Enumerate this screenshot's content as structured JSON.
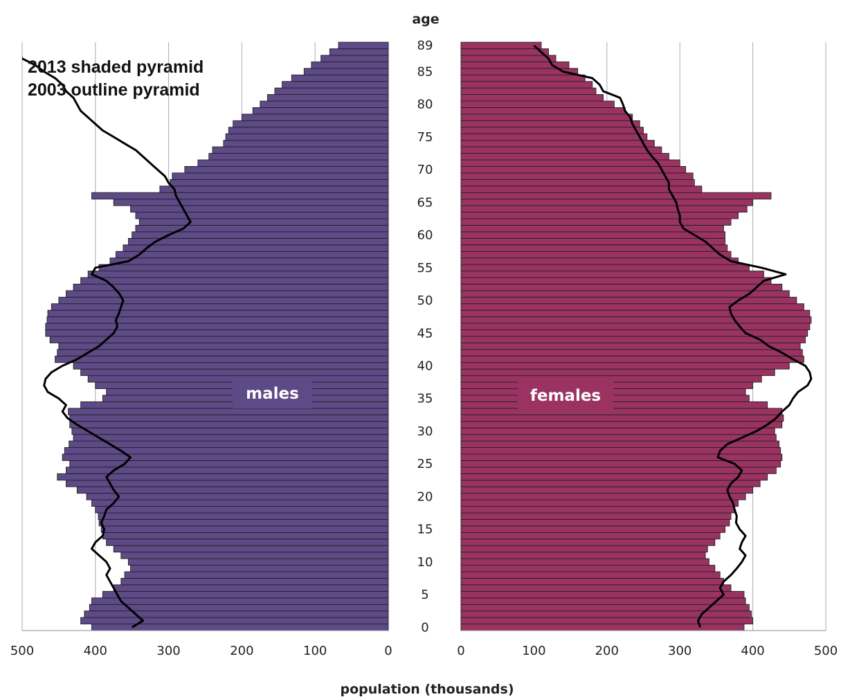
{
  "chart_data": {
    "type": "bar",
    "subtype": "population-pyramid",
    "legend_lines": [
      "2013 shaded pyramid",
      "2003 outline pyramid"
    ],
    "legend_placement": "top-left",
    "age_axis_title": "age",
    "x_axis_title": "population (thousands)",
    "age_ticks": [
      "0",
      "5",
      "10",
      "15",
      "20",
      "25",
      "30",
      "35",
      "40",
      "45",
      "50",
      "55",
      "60",
      "65",
      "70",
      "75",
      "80",
      "85",
      "89"
    ],
    "x_ticks_males": [
      "500",
      "400",
      "300",
      "200",
      "100",
      "0"
    ],
    "x_ticks_females": [
      "0",
      "100",
      "200",
      "300",
      "400",
      "500"
    ],
    "xlim": [
      0,
      500
    ],
    "grid": "vertical",
    "colors": {
      "males": "#5e4a87",
      "females": "#9b3362",
      "outline": "#000000",
      "bar_edge": "#222222",
      "grid": "#aaaaaa"
    },
    "series": [
      {
        "name": "males",
        "year": 2013,
        "values": [
          405,
          420,
          415,
          408,
          405,
          390,
          375,
          365,
          360,
          352,
          355,
          365,
          375,
          385,
          390,
          392,
          395,
          396,
          400,
          405,
          412,
          425,
          440,
          452,
          440,
          435,
          445,
          442,
          436,
          430,
          432,
          435,
          435,
          437,
          420,
          390,
          385,
          400,
          410,
          420,
          430,
          455,
          452,
          450,
          462,
          468,
          468,
          466,
          465,
          460,
          450,
          440,
          430,
          420,
          410,
          395,
          380,
          372,
          362,
          355,
          350,
          345,
          340,
          345,
          352,
          375,
          405,
          312,
          298,
          295,
          278,
          260,
          245,
          240,
          225,
          222,
          218,
          212,
          200,
          185,
          175,
          165,
          155,
          145,
          132,
          115,
          105,
          92,
          80,
          68
        ]
      },
      {
        "name": "females",
        "year": 2013,
        "values": [
          388,
          400,
          398,
          395,
          390,
          388,
          370,
          360,
          355,
          348,
          340,
          335,
          338,
          348,
          355,
          362,
          368,
          370,
          375,
          380,
          390,
          400,
          410,
          420,
          432,
          438,
          440,
          438,
          436,
          432,
          430,
          440,
          442,
          440,
          420,
          395,
          390,
          400,
          412,
          430,
          450,
          470,
          468,
          465,
          472,
          475,
          478,
          480,
          478,
          470,
          460,
          450,
          440,
          425,
          415,
          395,
          380,
          370,
          365,
          362,
          362,
          360,
          370,
          380,
          392,
          400,
          425,
          330,
          320,
          318,
          308,
          300,
          285,
          275,
          265,
          255,
          250,
          245,
          235,
          225,
          210,
          195,
          185,
          180,
          170,
          160,
          148,
          130,
          120,
          110
        ]
      },
      {
        "name": "males 2003",
        "year": 2003,
        "values": [
          350,
          335,
          345,
          355,
          365,
          370,
          375,
          380,
          385,
          380,
          385,
          395,
          405,
          400,
          390,
          388,
          392,
          388,
          385,
          375,
          368,
          375,
          380,
          385,
          375,
          360,
          352,
          365,
          380,
          395,
          410,
          425,
          438,
          445,
          440,
          450,
          465,
          470,
          468,
          460,
          445,
          425,
          410,
          395,
          385,
          375,
          370,
          372,
          368,
          365,
          362,
          367,
          375,
          385,
          405,
          400,
          355,
          340,
          330,
          318,
          300,
          280,
          270,
          275,
          280,
          285,
          290,
          292,
          300,
          305,
          315,
          325,
          335,
          345,
          360,
          375,
          390,
          400,
          410,
          420,
          425,
          430,
          440,
          445,
          455,
          470,
          482,
          500,
          505,
          512
        ]
      },
      {
        "name": "females 2003",
        "year": 2003,
        "values": [
          328,
          325,
          330,
          340,
          350,
          360,
          355,
          360,
          370,
          378,
          385,
          390,
          382,
          385,
          390,
          382,
          377,
          378,
          375,
          373,
          368,
          365,
          370,
          380,
          385,
          375,
          352,
          355,
          365,
          385,
          405,
          420,
          432,
          440,
          450,
          455,
          462,
          475,
          480,
          478,
          472,
          455,
          440,
          422,
          410,
          390,
          382,
          375,
          370,
          368,
          380,
          395,
          405,
          415,
          445,
          412,
          370,
          355,
          345,
          335,
          320,
          305,
          300,
          300,
          297,
          295,
          290,
          285,
          285,
          280,
          275,
          270,
          262,
          255,
          250,
          245,
          240,
          235,
          232,
          225,
          222,
          218,
          195,
          190,
          180,
          140,
          125,
          120,
          110,
          100
        ]
      }
    ]
  },
  "labels": {
    "males": "males",
    "females": "females"
  }
}
